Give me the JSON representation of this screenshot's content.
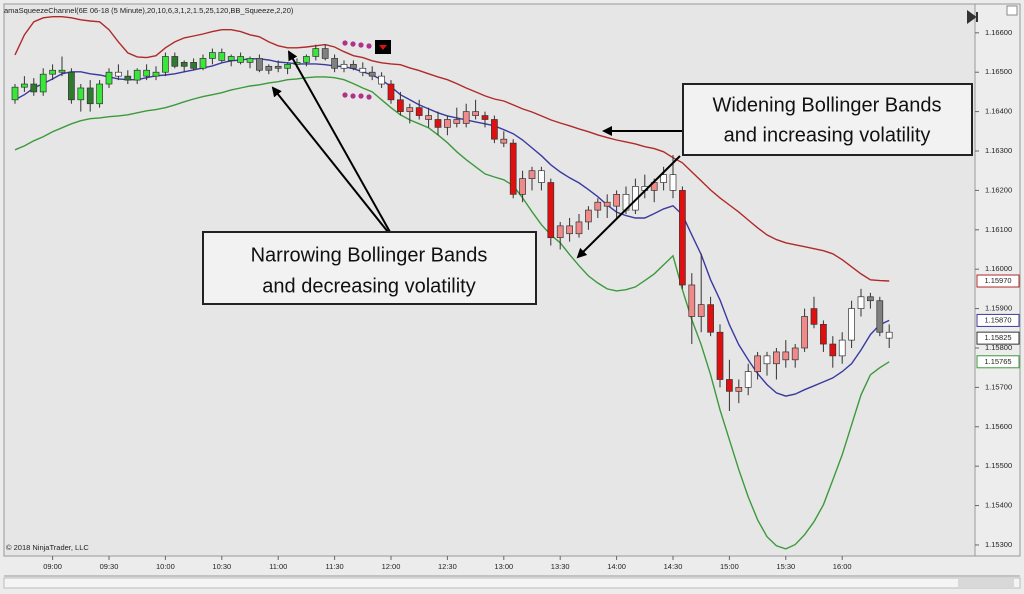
{
  "chart_data": {
    "type": "candlestick",
    "title": "amaSqueezeChannel(6E 06-18 (5 Minute),20,10,6,3,1,2,1.5,25,120,BB_Squeeze,2,20)",
    "copyright": "© 2018 NinjaTrader, LLC",
    "categories": [
      null,
      null,
      null,
      null,
      "09:00",
      null,
      null,
      null,
      null,
      null,
      "09:30",
      null,
      null,
      null,
      null,
      null,
      "10:00",
      null,
      null,
      null,
      null,
      null,
      "10:30",
      null,
      null,
      null,
      null,
      null,
      "11:00",
      null,
      null,
      null,
      null,
      null,
      "11:30",
      null,
      null,
      null,
      null,
      null,
      "12:00",
      null,
      null,
      null,
      null,
      null,
      "12:30",
      null,
      null,
      null,
      null,
      null,
      "13:00",
      null,
      null,
      null,
      null,
      null,
      "13:30",
      null,
      null,
      null,
      null,
      null,
      "14:00",
      null,
      null,
      null,
      null,
      null,
      "14:30",
      null,
      null,
      null,
      null,
      null,
      "15:00",
      null,
      null,
      null,
      null,
      null,
      "15:30",
      null,
      null,
      null,
      null,
      null,
      "16:00",
      null,
      null,
      null,
      null,
      null
    ],
    "candles": {
      "open": [
        1.1643,
        1.16462,
        1.1647,
        1.1645,
        1.16495,
        1.16505,
        1.165,
        1.1643,
        1.1646,
        1.1642,
        1.1647,
        1.165,
        1.1649,
        1.1648,
        1.16505,
        1.1649,
        1.165,
        1.1654,
        1.16515,
        1.16525,
        1.1651,
        1.16535,
        1.1655,
        1.1653,
        1.1654,
        1.16525,
        1.16535,
        1.16505,
        1.16515,
        1.1651,
        1.1652,
        1.16525,
        1.1654,
        1.1656,
        1.16535,
        1.1651,
        1.1652,
        1.1651,
        1.165,
        1.1649,
        1.1647,
        1.1643,
        1.164,
        1.1641,
        1.1639,
        1.1638,
        1.1636,
        1.1638,
        1.1637,
        1.164,
        1.1639,
        1.1638,
        1.1633,
        1.1632,
        1.1619,
        1.1623,
        1.1625,
        1.1622,
        1.1608,
        1.1611,
        1.1609,
        1.1612,
        1.1615,
        1.1617,
        1.1616,
        1.1619,
        1.1615,
        1.1621,
        1.162,
        1.1622,
        1.1624,
        1.162,
        1.1596,
        1.1588,
        1.1591,
        1.1584,
        1.1572,
        1.1569,
        1.157,
        1.1574,
        1.1578,
        1.1576,
        1.1579,
        1.1577,
        1.158,
        1.159,
        1.1586,
        1.1581,
        1.1578,
        1.1582,
        1.159,
        1.1593,
        1.1592,
        1.1584
      ],
      "high": [
        1.1647,
        1.1649,
        1.16485,
        1.1651,
        1.1652,
        1.1654,
        1.1651,
        1.1647,
        1.1648,
        1.1648,
        1.1651,
        1.1652,
        1.16505,
        1.1651,
        1.1652,
        1.16515,
        1.1655,
        1.1655,
        1.1653,
        1.16535,
        1.16545,
        1.1656,
        1.1656,
        1.16545,
        1.1655,
        1.1654,
        1.16545,
        1.1652,
        1.1653,
        1.16525,
        1.16535,
        1.16545,
        1.1657,
        1.1657,
        1.16545,
        1.1653,
        1.1653,
        1.16525,
        1.16515,
        1.165,
        1.1648,
        1.1645,
        1.1642,
        1.1643,
        1.1641,
        1.164,
        1.1639,
        1.1641,
        1.1642,
        1.1643,
        1.164,
        1.1639,
        1.1635,
        1.1633,
        1.1625,
        1.1626,
        1.1626,
        1.1623,
        1.1612,
        1.1613,
        1.1614,
        1.1616,
        1.1618,
        1.1619,
        1.162,
        1.1621,
        1.1623,
        1.1624,
        1.1623,
        1.1626,
        1.1629,
        1.1621,
        1.1599,
        1.1604,
        1.1593,
        1.1586,
        1.1577,
        1.1572,
        1.1576,
        1.1579,
        1.1579,
        1.158,
        1.1582,
        1.1581,
        1.159,
        1.1593,
        1.1587,
        1.1583,
        1.1584,
        1.1592,
        1.1595,
        1.1594,
        1.1593,
        1.1586
      ],
      "low": [
        1.1642,
        1.1645,
        1.1644,
        1.1644,
        1.1648,
        1.1649,
        1.1642,
        1.164,
        1.164,
        1.1641,
        1.1646,
        1.1648,
        1.1647,
        1.1647,
        1.1648,
        1.1648,
        1.1649,
        1.1651,
        1.165,
        1.16505,
        1.16505,
        1.1652,
        1.16525,
        1.16515,
        1.1652,
        1.1651,
        1.165,
        1.16495,
        1.165,
        1.16495,
        1.1651,
        1.16515,
        1.1653,
        1.1653,
        1.165,
        1.165,
        1.16505,
        1.1649,
        1.1648,
        1.1646,
        1.1642,
        1.1639,
        1.1637,
        1.1638,
        1.1636,
        1.1634,
        1.1634,
        1.1636,
        1.1636,
        1.1638,
        1.1636,
        1.1632,
        1.1631,
        1.1618,
        1.1617,
        1.162,
        1.162,
        1.1606,
        1.1605,
        1.1607,
        1.1608,
        1.161,
        1.1613,
        1.1613,
        1.1613,
        1.1614,
        1.1614,
        1.1618,
        1.1617,
        1.162,
        1.1618,
        1.1595,
        1.1581,
        1.1584,
        1.1583,
        1.157,
        1.1564,
        1.1566,
        1.1568,
        1.1572,
        1.1573,
        1.1572,
        1.1575,
        1.1575,
        1.1579,
        1.1585,
        1.1579,
        1.1575,
        1.1576,
        1.158,
        1.1588,
        1.159,
        1.1583,
        1.158
      ],
      "close": [
        1.16462,
        1.1647,
        1.1645,
        1.16495,
        1.16505,
        1.165,
        1.1643,
        1.1646,
        1.1642,
        1.1647,
        1.165,
        1.1649,
        1.1648,
        1.16505,
        1.1649,
        1.165,
        1.1654,
        1.16515,
        1.16525,
        1.1651,
        1.16535,
        1.1655,
        1.1653,
        1.1654,
        1.16525,
        1.16535,
        1.16505,
        1.16515,
        1.1651,
        1.1652,
        1.16525,
        1.1654,
        1.1656,
        1.16535,
        1.1651,
        1.1652,
        1.1651,
        1.165,
        1.1649,
        1.1647,
        1.1643,
        1.164,
        1.1641,
        1.1639,
        1.1638,
        1.1636,
        1.1638,
        1.1637,
        1.164,
        1.1639,
        1.1638,
        1.1633,
        1.1632,
        1.1619,
        1.1623,
        1.1625,
        1.1622,
        1.1608,
        1.1611,
        1.1609,
        1.1612,
        1.1615,
        1.1617,
        1.1616,
        1.1619,
        1.1615,
        1.1621,
        1.162,
        1.1622,
        1.1624,
        1.162,
        1.1596,
        1.1588,
        1.1591,
        1.1584,
        1.1572,
        1.1569,
        1.157,
        1.1574,
        1.1578,
        1.1576,
        1.1579,
        1.1577,
        1.158,
        1.1588,
        1.1586,
        1.1581,
        1.1578,
        1.1582,
        1.159,
        1.1593,
        1.1592,
        1.1584,
        1.15825
      ],
      "colors": [
        "#39e639",
        "#39e639",
        "#2f7a2f",
        "#39e639",
        "#39e639",
        "#39e639",
        "#2f7a2f",
        "#39e639",
        "#2f7a2f",
        "#39e639",
        "#39e639",
        "#ffffff",
        "#2f7a2f",
        "#39e639",
        "#39e639",
        "#39e639",
        "#39e639",
        "#2f7a2f",
        "#2f7a2f",
        "#2f7a2f",
        "#39e639",
        "#39e639",
        "#39e639",
        "#39e639",
        "#39e639",
        "#39e639",
        "#808080",
        "#808080",
        "#808080",
        "#39e639",
        "#39e639",
        "#39e639",
        "#39e639",
        "#808080",
        "#808080",
        "#ffffff",
        "#808080",
        "#ffffff",
        "#808080",
        "#ffffff",
        "#e01010",
        "#e01010",
        "#f08a8a",
        "#e01010",
        "#f08a8a",
        "#e01010",
        "#f08a8a",
        "#f08a8a",
        "#f08a8a",
        "#f08a8a",
        "#e01010",
        "#e01010",
        "#f08a8a",
        "#e01010",
        "#f08a8a",
        "#f08a8a",
        "#ffffff",
        "#e01010",
        "#f08a8a",
        "#f08a8a",
        "#f08a8a",
        "#f08a8a",
        "#f08a8a",
        "#f08a8a",
        "#f08a8a",
        "#ffffff",
        "#ffffff",
        "#ffffff",
        "#f08a8a",
        "#ffffff",
        "#ffffff",
        "#e01010",
        "#f08a8a",
        "#f08a8a",
        "#e01010",
        "#e01010",
        "#e01010",
        "#f08a8a",
        "#ffffff",
        "#f08a8a",
        "#ffffff",
        "#f08a8a",
        "#f08a8a",
        "#f08a8a",
        "#f08a8a",
        "#e01010",
        "#e01010",
        "#e01010",
        "#ffffff",
        "#ffffff",
        "#ffffff",
        "#808080",
        "#808080",
        "#ffffff"
      ],
      "last_label": "1.15825"
    },
    "bands": [
      {
        "color": "#b02a2a",
        "last_label": "1.15970",
        "values": [
          1.16544,
          1.16595,
          1.16628,
          1.16638,
          1.16641,
          1.16641,
          1.16638,
          1.16633,
          1.1663,
          1.16628,
          1.16608,
          1.16577,
          1.16549,
          1.16539,
          1.16537,
          1.16542,
          1.16562,
          1.16577,
          1.16587,
          1.16592,
          1.16597,
          1.16603,
          1.16608,
          1.16608,
          1.16603,
          1.16595,
          1.1659,
          1.16577,
          1.16567,
          1.16562,
          1.16562,
          1.16564,
          1.16567,
          1.1657,
          1.16564,
          1.16552,
          1.16542,
          1.16537,
          1.16529,
          1.16524,
          1.16521,
          1.16519,
          1.16511,
          1.16504,
          1.16496,
          1.16488,
          1.16481,
          1.16471,
          1.1646,
          1.1645,
          1.1644,
          1.16432,
          1.16427,
          1.16417,
          1.16407,
          1.16399,
          1.16389,
          1.16379,
          1.16371,
          1.16364,
          1.16356,
          1.16349,
          1.16341,
          1.16334,
          1.16328,
          1.16323,
          1.16318,
          1.16311,
          1.16306,
          1.16298,
          1.16283,
          1.1627,
          1.16247,
          1.16224,
          1.16201,
          1.16181,
          1.16163,
          1.16145,
          1.16125,
          1.16105,
          1.16087,
          1.16075,
          1.16067,
          1.16062,
          1.16057,
          1.16052,
          1.16047,
          1.16039,
          1.16024,
          1.16006,
          1.15988,
          1.15973,
          1.15971,
          1.1597
        ]
      },
      {
        "color": "#3a3aa0",
        "last_label": "1.15870",
        "values": [
          1.1643,
          1.16443,
          1.1646,
          1.16471,
          1.16483,
          1.16496,
          1.16501,
          1.16501,
          1.16496,
          1.16493,
          1.16488,
          1.16483,
          1.16481,
          1.16481,
          1.16486,
          1.16491,
          1.16493,
          1.16496,
          1.16501,
          1.16506,
          1.16511,
          1.16516,
          1.16524,
          1.16529,
          1.16531,
          1.16534,
          1.16534,
          1.16531,
          1.16526,
          1.16524,
          1.16521,
          1.16521,
          1.16521,
          1.16519,
          1.16516,
          1.16514,
          1.16509,
          1.16501,
          1.16493,
          1.16481,
          1.16463,
          1.16443,
          1.1643,
          1.16417,
          1.16407,
          1.16397,
          1.16389,
          1.16384,
          1.16379,
          1.16374,
          1.16369,
          1.16364,
          1.16354,
          1.16344,
          1.16328,
          1.16308,
          1.16288,
          1.16265,
          1.16247,
          1.16232,
          1.16219,
          1.16202,
          1.16184,
          1.16163,
          1.16145,
          1.16136,
          1.1613,
          1.1613,
          1.16141,
          1.16153,
          1.16161,
          1.16138,
          1.16087,
          1.16037,
          1.15973,
          1.15922,
          1.15859,
          1.15808,
          1.1577,
          1.15735,
          1.15707,
          1.15686,
          1.15678,
          1.15683,
          1.15694,
          1.15704,
          1.15714,
          1.15724,
          1.1574,
          1.1576,
          1.15795,
          1.15834,
          1.15859,
          1.1587
        ]
      },
      {
        "color": "#3c9a3c",
        "last_label": "1.15765",
        "values": [
          1.16303,
          1.16313,
          1.16326,
          1.16336,
          1.16349,
          1.16359,
          1.16369,
          1.16377,
          1.16382,
          1.16384,
          1.16387,
          1.16389,
          1.16392,
          1.16397,
          1.16402,
          1.16405,
          1.1641,
          1.16417,
          1.16425,
          1.16432,
          1.16438,
          1.16443,
          1.16448,
          1.16455,
          1.1646,
          1.16465,
          1.16468,
          1.16473,
          1.16476,
          1.16481,
          1.16483,
          1.16486,
          1.16488,
          1.16488,
          1.16486,
          1.16481,
          1.16471,
          1.1646,
          1.1645,
          1.1643,
          1.1641,
          1.16392,
          1.16379,
          1.16369,
          1.16359,
          1.16341,
          1.16321,
          1.16298,
          1.16278,
          1.1626,
          1.16242,
          1.16234,
          1.16227,
          1.16212,
          1.16181,
          1.16146,
          1.16113,
          1.16087,
          1.16067,
          1.16037,
          1.16009,
          1.15983,
          1.15965,
          1.1595,
          1.15945,
          1.15948,
          1.15955,
          1.15971,
          1.15988,
          1.16011,
          1.16034,
          1.15948,
          1.15872,
          1.15808,
          1.15732,
          1.15643,
          1.15567,
          1.15491,
          1.15422,
          1.15364,
          1.15321,
          1.15298,
          1.1529,
          1.15301,
          1.15326,
          1.15359,
          1.15402,
          1.15465,
          1.15529,
          1.15605,
          1.15681,
          1.15732,
          1.1575,
          1.15765
        ]
      }
    ],
    "ylim": [
      1.15272,
      1.16663
    ],
    "yticks": [
      {
        "value": 1.166,
        "label": "1.16600"
      },
      {
        "value": 1.165,
        "label": "1.16500"
      },
      {
        "value": 1.164,
        "label": "1.16400"
      },
      {
        "value": 1.163,
        "label": "1.16300"
      },
      {
        "value": 1.162,
        "label": "1.16200"
      },
      {
        "value": 1.161,
        "label": "1.16100"
      },
      {
        "value": 1.16,
        "label": "1.16000"
      },
      {
        "value": 1.159,
        "label": "1.15900"
      },
      {
        "value": 1.158,
        "label": "1.15800"
      },
      {
        "value": 1.157,
        "label": "1.15700"
      },
      {
        "value": 1.156,
        "label": "1.15600"
      },
      {
        "value": 1.155,
        "label": "1.15500"
      },
      {
        "value": 1.154,
        "label": "1.15400"
      },
      {
        "value": 1.153,
        "label": "1.15300"
      }
    ],
    "grid": false,
    "annotations": [
      {
        "lines": [
          "Widening Bollinger Bands",
          "and increasing volatility"
        ]
      },
      {
        "lines": [
          "Narrowing Bollinger Bands",
          "and decreasing volatility"
        ]
      }
    ]
  }
}
